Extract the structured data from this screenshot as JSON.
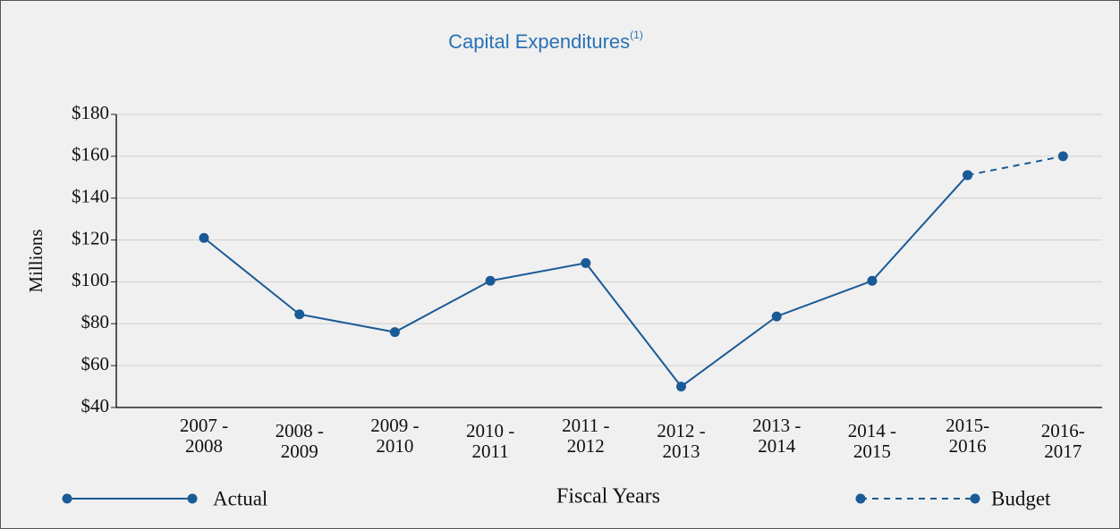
{
  "chart_data": {
    "type": "line",
    "title": "Capital Expenditures",
    "title_superscript": "(1)",
    "y_label": "Millions",
    "x_label": "Fiscal Years",
    "categories": [
      [
        "2007 -",
        "2008"
      ],
      [
        "2008 -",
        "2009"
      ],
      [
        "2009 -",
        "2010"
      ],
      [
        "2010 -",
        "2011"
      ],
      [
        "2011 -",
        "2012"
      ],
      [
        "2012 -",
        "2013"
      ],
      [
        "2013 -",
        "2014"
      ],
      [
        "2014 -",
        "2015"
      ],
      [
        "2015-",
        "2016"
      ],
      [
        "2016-",
        "2017"
      ]
    ],
    "series": [
      {
        "name": "Actual",
        "color": "#1a5a96",
        "dashed": false,
        "values": [
          121,
          84.5,
          76,
          100.5,
          109,
          50,
          83.5,
          100.5,
          151,
          null
        ]
      },
      {
        "name": "Budget",
        "color": "#1a5a96",
        "dashed": true,
        "values": [
          null,
          null,
          null,
          null,
          null,
          null,
          null,
          null,
          151,
          160
        ]
      }
    ],
    "ylim": [
      40,
      180
    ],
    "yticks": [
      {
        "value": 40,
        "label": "$40"
      },
      {
        "value": 60,
        "label": "$60"
      },
      {
        "value": 80,
        "label": "$80"
      },
      {
        "value": 100,
        "label": "$100"
      },
      {
        "value": 120,
        "label": "$120"
      },
      {
        "value": 140,
        "label": "$140"
      },
      {
        "value": 160,
        "label": "$160"
      },
      {
        "value": 180,
        "label": "$180"
      }
    ],
    "grid": true
  }
}
